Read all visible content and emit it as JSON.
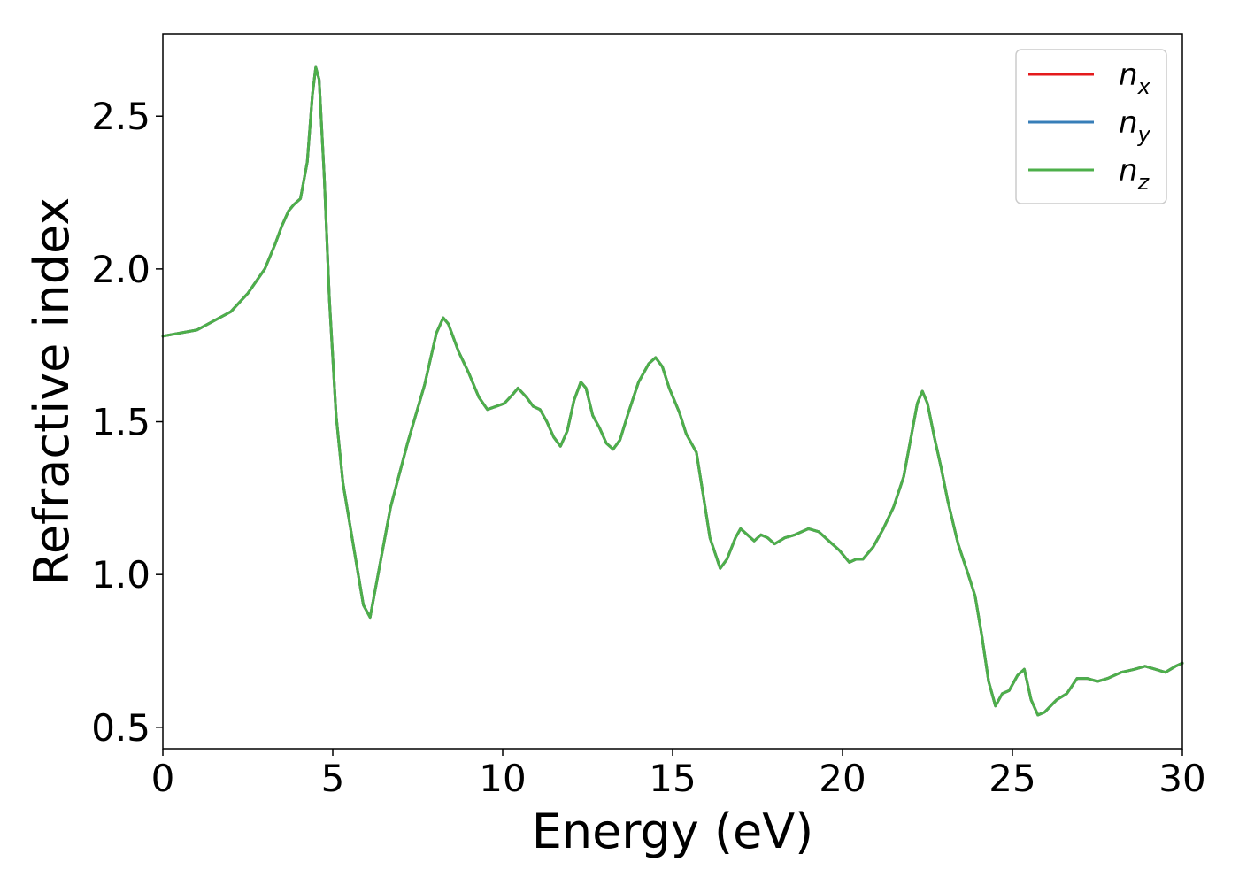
{
  "chart_data": {
    "type": "line",
    "title": "",
    "xlabel": "Energy (eV)",
    "ylabel": "Refractive index",
    "xlim": [
      0,
      30
    ],
    "ylim": [
      0.43,
      2.77
    ],
    "xticks": [
      0,
      5,
      10,
      15,
      20,
      25,
      30
    ],
    "yticks": [
      0.5,
      1.0,
      1.5,
      2.0,
      2.5
    ],
    "xtick_labels": [
      "0",
      "5",
      "10",
      "15",
      "20",
      "25",
      "30"
    ],
    "ytick_labels": [
      "0.5",
      "1.0",
      "1.5",
      "2.0",
      "2.5"
    ],
    "grid": false,
    "legend_position": "top-right",
    "colors": {
      "nx": "#e41a1c",
      "ny": "#377eb8",
      "nz": "#4daf4a"
    },
    "x": [
      0,
      1,
      2,
      2.5,
      3,
      3.3,
      3.5,
      3.7,
      3.85,
      4.05,
      4.25,
      4.4,
      4.5,
      4.6,
      4.75,
      4.9,
      5.1,
      5.3,
      5.6,
      5.9,
      6.1,
      6.3,
      6.7,
      7.2,
      7.7,
      8.05,
      8.25,
      8.4,
      8.7,
      9,
      9.3,
      9.55,
      9.8,
      10.05,
      10.3,
      10.45,
      10.7,
      10.9,
      11.1,
      11.3,
      11.5,
      11.7,
      11.9,
      12.1,
      12.3,
      12.45,
      12.65,
      12.85,
      13.05,
      13.25,
      13.45,
      13.7,
      14,
      14.3,
      14.5,
      14.7,
      14.9,
      15.2,
      15.4,
      15.7,
      15.9,
      16.1,
      16.4,
      16.6,
      16.85,
      17,
      17.2,
      17.4,
      17.6,
      17.8,
      18,
      18.3,
      18.6,
      19,
      19.3,
      19.6,
      19.9,
      20.2,
      20.4,
      20.6,
      20.9,
      21.2,
      21.5,
      21.8,
      22,
      22.2,
      22.35,
      22.5,
      22.7,
      22.9,
      23.1,
      23.4,
      23.7,
      23.9,
      24.1,
      24.3,
      24.5,
      24.7,
      24.9,
      25.15,
      25.35,
      25.55,
      25.75,
      25.95,
      26.3,
      26.6,
      26.9,
      27.2,
      27.5,
      27.8,
      28.2,
      28.6,
      28.9,
      29.2,
      29.5,
      29.8,
      30
    ],
    "series": [
      {
        "name": "n_x",
        "values": [
          1.78,
          1.8,
          1.86,
          1.92,
          2.0,
          2.08,
          2.14,
          2.19,
          2.21,
          2.23,
          2.35,
          2.57,
          2.66,
          2.62,
          2.3,
          1.9,
          1.52,
          1.3,
          1.1,
          0.9,
          0.86,
          0.98,
          1.22,
          1.43,
          1.62,
          1.79,
          1.84,
          1.82,
          1.73,
          1.66,
          1.58,
          1.54,
          1.55,
          1.56,
          1.59,
          1.61,
          1.58,
          1.55,
          1.54,
          1.5,
          1.45,
          1.42,
          1.47,
          1.57,
          1.63,
          1.61,
          1.52,
          1.48,
          1.43,
          1.41,
          1.44,
          1.53,
          1.63,
          1.69,
          1.71,
          1.68,
          1.61,
          1.53,
          1.46,
          1.4,
          1.26,
          1.12,
          1.02,
          1.05,
          1.12,
          1.15,
          1.13,
          1.11,
          1.13,
          1.12,
          1.1,
          1.12,
          1.13,
          1.15,
          1.14,
          1.11,
          1.08,
          1.04,
          1.05,
          1.05,
          1.09,
          1.15,
          1.22,
          1.32,
          1.44,
          1.56,
          1.6,
          1.56,
          1.45,
          1.35,
          1.24,
          1.1,
          1.0,
          0.93,
          0.8,
          0.65,
          0.57,
          0.61,
          0.62,
          0.67,
          0.69,
          0.59,
          0.54,
          0.55,
          0.59,
          0.61,
          0.66,
          0.66,
          0.65,
          0.66,
          0.68,
          0.69,
          0.7,
          0.69,
          0.68,
          0.7,
          0.71
        ]
      },
      {
        "name": "n_y",
        "values": [
          1.78,
          1.8,
          1.86,
          1.92,
          2.0,
          2.08,
          2.14,
          2.19,
          2.21,
          2.23,
          2.35,
          2.57,
          2.66,
          2.62,
          2.3,
          1.9,
          1.52,
          1.3,
          1.1,
          0.9,
          0.86,
          0.98,
          1.22,
          1.43,
          1.62,
          1.79,
          1.84,
          1.82,
          1.73,
          1.66,
          1.58,
          1.54,
          1.55,
          1.56,
          1.59,
          1.61,
          1.58,
          1.55,
          1.54,
          1.5,
          1.45,
          1.42,
          1.47,
          1.57,
          1.63,
          1.61,
          1.52,
          1.48,
          1.43,
          1.41,
          1.44,
          1.53,
          1.63,
          1.69,
          1.71,
          1.68,
          1.61,
          1.53,
          1.46,
          1.4,
          1.26,
          1.12,
          1.02,
          1.05,
          1.12,
          1.15,
          1.13,
          1.11,
          1.13,
          1.12,
          1.1,
          1.12,
          1.13,
          1.15,
          1.14,
          1.11,
          1.08,
          1.04,
          1.05,
          1.05,
          1.09,
          1.15,
          1.22,
          1.32,
          1.44,
          1.56,
          1.6,
          1.56,
          1.45,
          1.35,
          1.24,
          1.1,
          1.0,
          0.93,
          0.8,
          0.65,
          0.57,
          0.61,
          0.62,
          0.67,
          0.69,
          0.59,
          0.54,
          0.55,
          0.59,
          0.61,
          0.66,
          0.66,
          0.65,
          0.66,
          0.68,
          0.69,
          0.7,
          0.69,
          0.68,
          0.7,
          0.71
        ]
      },
      {
        "name": "n_z",
        "values": [
          1.78,
          1.8,
          1.86,
          1.92,
          2.0,
          2.08,
          2.14,
          2.19,
          2.21,
          2.23,
          2.35,
          2.57,
          2.66,
          2.62,
          2.3,
          1.9,
          1.52,
          1.3,
          1.1,
          0.9,
          0.86,
          0.98,
          1.22,
          1.43,
          1.62,
          1.79,
          1.84,
          1.82,
          1.73,
          1.66,
          1.58,
          1.54,
          1.55,
          1.56,
          1.59,
          1.61,
          1.58,
          1.55,
          1.54,
          1.5,
          1.45,
          1.42,
          1.47,
          1.57,
          1.63,
          1.61,
          1.52,
          1.48,
          1.43,
          1.41,
          1.44,
          1.53,
          1.63,
          1.69,
          1.71,
          1.68,
          1.61,
          1.53,
          1.46,
          1.4,
          1.26,
          1.12,
          1.02,
          1.05,
          1.12,
          1.15,
          1.13,
          1.11,
          1.13,
          1.12,
          1.1,
          1.12,
          1.13,
          1.15,
          1.14,
          1.11,
          1.08,
          1.04,
          1.05,
          1.05,
          1.09,
          1.15,
          1.22,
          1.32,
          1.44,
          1.56,
          1.6,
          1.56,
          1.45,
          1.35,
          1.24,
          1.1,
          1.0,
          0.93,
          0.8,
          0.65,
          0.57,
          0.61,
          0.62,
          0.67,
          0.69,
          0.59,
          0.54,
          0.55,
          0.59,
          0.61,
          0.66,
          0.66,
          0.65,
          0.66,
          0.68,
          0.69,
          0.7,
          0.69,
          0.68,
          0.7,
          0.71
        ]
      }
    ],
    "legend": [
      {
        "base": "n",
        "sub": "x",
        "series": "n_x"
      },
      {
        "base": "n",
        "sub": "y",
        "series": "n_y"
      },
      {
        "base": "n",
        "sub": "z",
        "series": "n_z"
      }
    ]
  }
}
